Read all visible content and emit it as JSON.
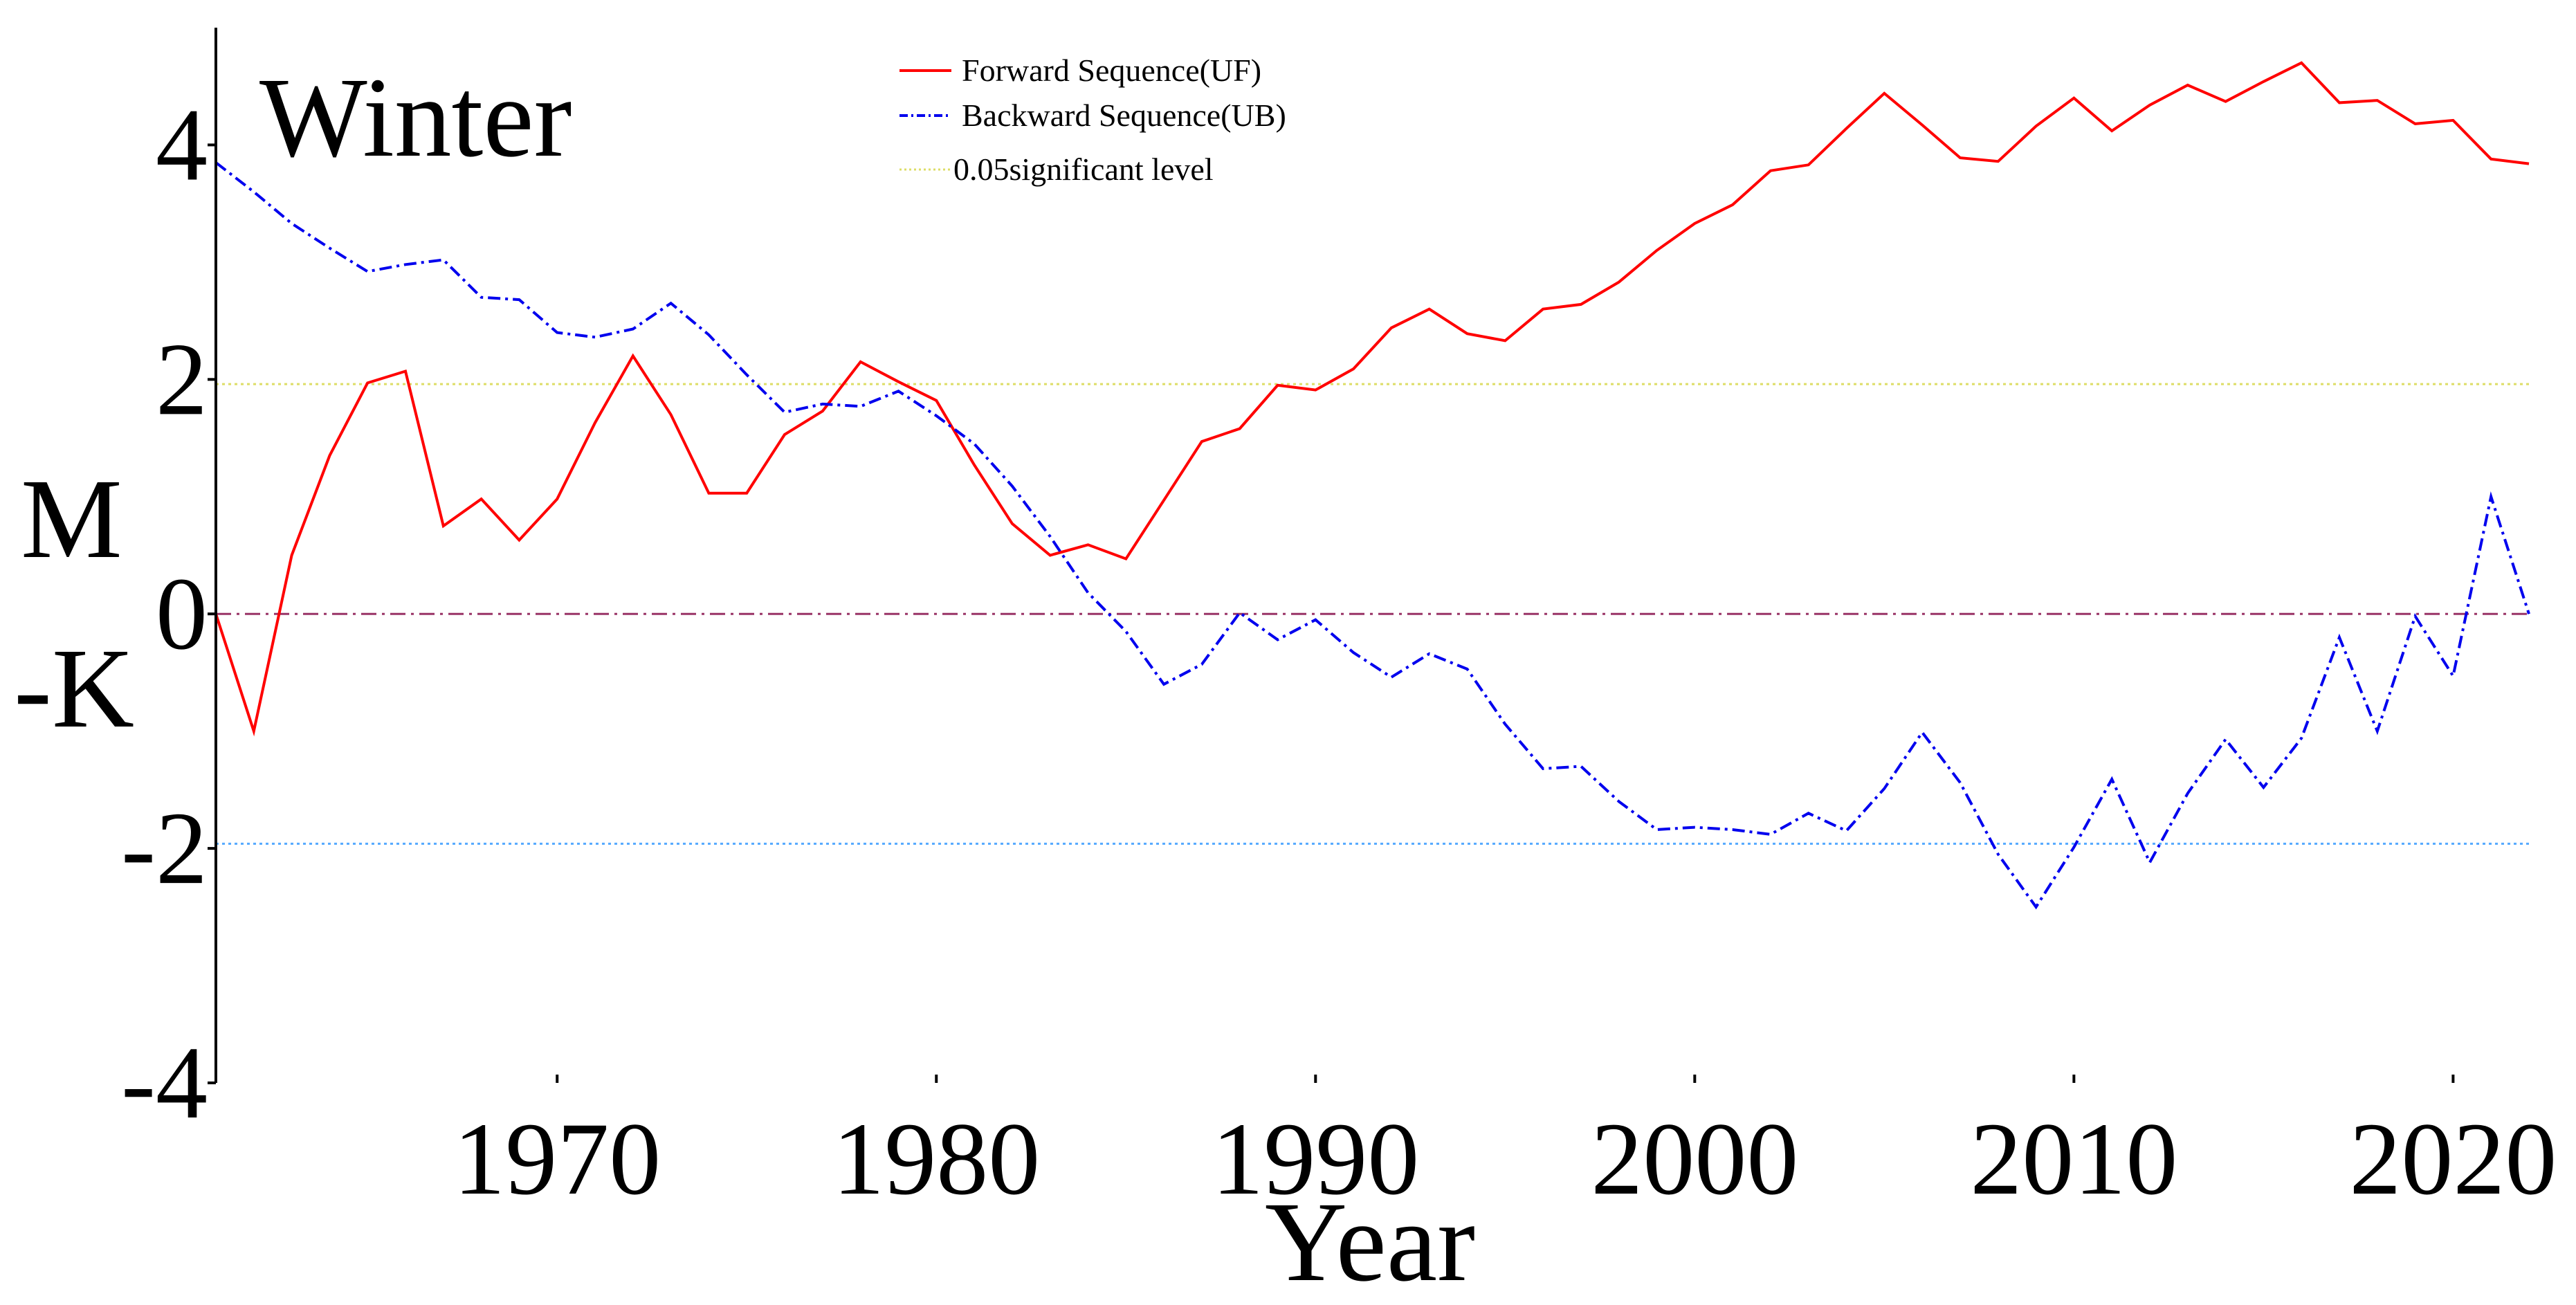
{
  "chart_data": {
    "type": "line",
    "title": "Winter",
    "xlabel": "Year",
    "ylabel_parts": [
      "M",
      "-K"
    ],
    "xlim": [
      1961,
      2022
    ],
    "ylim": [
      -4,
      5
    ],
    "xticks": [
      1970,
      1980,
      1990,
      2000,
      2010,
      2020
    ],
    "yticks": [
      4,
      2,
      0,
      -2,
      -4
    ],
    "x": [
      1961,
      1962,
      1963,
      1964,
      1965,
      1966,
      1967,
      1968,
      1969,
      1970,
      1971,
      1972,
      1973,
      1974,
      1975,
      1976,
      1977,
      1978,
      1979,
      1980,
      1981,
      1982,
      1983,
      1984,
      1985,
      1986,
      1987,
      1988,
      1989,
      1990,
      1991,
      1992,
      1993,
      1994,
      1995,
      1996,
      1997,
      1998,
      1999,
      2000,
      2001,
      2002,
      2003,
      2004,
      2005,
      2006,
      2007,
      2008,
      2009,
      2010,
      2011,
      2012,
      2013,
      2014,
      2015,
      2016,
      2017,
      2018,
      2019,
      2020,
      2021,
      2022
    ],
    "series": [
      {
        "name": "Forward Sequence(UF)",
        "color": "#ff0000",
        "dash": "solid",
        "values": [
          0,
          -1.0,
          0.5,
          1.35,
          1.97,
          2.07,
          0.75,
          0.98,
          0.63,
          0.98,
          1.63,
          2.2,
          1.7,
          1.03,
          1.03,
          1.53,
          1.73,
          2.15,
          1.98,
          1.82,
          1.27,
          0.77,
          0.5,
          0.59,
          0.47,
          0.97,
          1.47,
          1.58,
          1.95,
          1.91,
          2.09,
          2.44,
          2.6,
          2.39,
          2.33,
          2.6,
          2.64,
          2.83,
          3.1,
          3.33,
          3.49,
          3.78,
          3.83,
          4.14,
          4.44,
          4.17,
          3.89,
          3.86,
          4.16,
          4.4,
          4.12,
          4.34,
          4.51,
          4.37,
          4.54,
          4.7,
          4.36,
          4.38,
          4.18,
          4.21,
          3.88,
          3.84
        ]
      },
      {
        "name": "Backward Sequence(UB)",
        "color": "#0000ee",
        "dash": "dash-dot",
        "values": [
          3.85,
          3.6,
          3.33,
          3.12,
          2.92,
          2.98,
          3.02,
          2.7,
          2.68,
          2.4,
          2.36,
          2.43,
          2.65,
          2.38,
          2.04,
          1.72,
          1.79,
          1.77,
          1.9,
          1.69,
          1.45,
          1.09,
          0.66,
          0.18,
          -0.15,
          -0.6,
          -0.43,
          0.01,
          -0.22,
          -0.05,
          -0.33,
          -0.54,
          -0.34,
          -0.47,
          -0.94,
          -1.32,
          -1.3,
          -1.6,
          -1.84,
          -1.82,
          -1.84,
          -1.88,
          -1.7,
          -1.85,
          -1.49,
          -1.01,
          -1.44,
          -2.05,
          -2.5,
          -1.99,
          -1.41,
          -2.12,
          -1.53,
          -1.07,
          -1.48,
          -1.06,
          -0.2,
          -1.0,
          -0.02,
          -0.53,
          1.0,
          0.0
        ]
      }
    ],
    "reference_lines": [
      {
        "name": "0.05significant level",
        "y": 1.96,
        "color": "#dddd66"
      },
      {
        "name": "0.05 significant level (negative)",
        "y": -1.96,
        "color": "#55aaff"
      },
      {
        "name": "zero line",
        "y": 0,
        "color": "#993366"
      }
    ],
    "legend": {
      "placement": "top-center",
      "items": [
        "Forward Sequence(UF)",
        "Backward Sequence(UB)",
        "0.05significant level"
      ]
    }
  }
}
